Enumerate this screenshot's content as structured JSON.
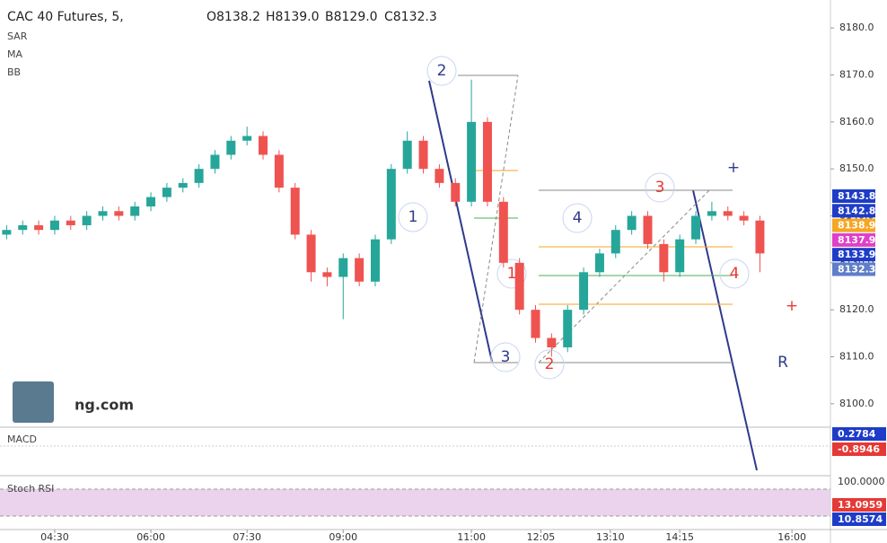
{
  "chart_data": {
    "type": "candlestick",
    "title": "CAC 40 Futures, 5,",
    "ohlc_header": [
      "O8138.2",
      "H8139.0",
      "B8129.0",
      "C8132.3"
    ],
    "indicators": [
      "SAR",
      "MA",
      "BB"
    ],
    "up_color": "#26a69a",
    "down_color": "#ef5350",
    "x": [
      225,
      240,
      255,
      270,
      285,
      300,
      315,
      330,
      345,
      360,
      375,
      390,
      405,
      420,
      435,
      450,
      465,
      480,
      495,
      510,
      525,
      540,
      555,
      570,
      585,
      600,
      615,
      630,
      645,
      660,
      675,
      690,
      705,
      720,
      735,
      750,
      765,
      780,
      795,
      810,
      825,
      840,
      855,
      870,
      885,
      900,
      915,
      930
    ],
    "open": [
      8136,
      8137,
      8138,
      8137,
      8139,
      8138,
      8140,
      8141,
      8140,
      8142,
      8144,
      8146,
      8147,
      8150,
      8153,
      8156,
      8157,
      8153,
      8146,
      8136,
      8128,
      8127,
      8131,
      8126,
      8135,
      8150,
      8156,
      8150,
      8147,
      8143,
      8160,
      8143,
      8130,
      8120,
      8114,
      8112,
      8120,
      8128,
      8132,
      8137,
      8140,
      8134,
      8128,
      8135,
      8140,
      8141,
      8140,
      8139
    ],
    "high": [
      8138,
      8139,
      8139,
      8140,
      8140,
      8141,
      8142,
      8142,
      8143,
      8145,
      8147,
      8148,
      8151,
      8154,
      8157,
      8159,
      8158,
      8154,
      8147,
      8137,
      8129,
      8132,
      8132,
      8136,
      8151,
      8158,
      8157,
      8151,
      8148,
      8169,
      8161,
      8144,
      8131,
      8121,
      8115,
      8121,
      8129,
      8133,
      8138,
      8141,
      8141,
      8135,
      8136,
      8141,
      8143,
      8142,
      8141,
      8140
    ],
    "low": [
      8135,
      8136,
      8136,
      8136,
      8137,
      8137,
      8139,
      8139,
      8139,
      8141,
      8143,
      8145,
      8146,
      8149,
      8152,
      8155,
      8152,
      8145,
      8135,
      8126,
      8125,
      8118,
      8125,
      8125,
      8134,
      8149,
      8149,
      8146,
      8142,
      8142,
      8142,
      8129,
      8119,
      8113,
      8110,
      8111,
      8119,
      8127,
      8131,
      8136,
      8133,
      8126,
      8127,
      8134,
      8139,
      8139,
      8138,
      8128
    ],
    "close": [
      8137,
      8138,
      8137,
      8139,
      8138,
      8140,
      8141,
      8140,
      8142,
      8144,
      8146,
      8147,
      8150,
      8153,
      8156,
      8157,
      8153,
      8146,
      8136,
      8128,
      8127,
      8131,
      8126,
      8135,
      8150,
      8156,
      8150,
      8147,
      8143,
      8160,
      8143,
      8130,
      8120,
      8114,
      8112,
      8120,
      8128,
      8132,
      8137,
      8140,
      8134,
      8128,
      8135,
      8140,
      8141,
      8140,
      8139,
      8132
    ],
    "xlim": [
      223,
      996
    ],
    "xticks": [
      {
        "value": 270,
        "label": "04:30"
      },
      {
        "value": 360,
        "label": "06:00"
      },
      {
        "value": 450,
        "label": "07:30"
      },
      {
        "value": 540,
        "label": "09:00"
      },
      {
        "value": 660,
        "label": "11:00"
      },
      {
        "value": 725,
        "label": "12:05"
      },
      {
        "value": 790,
        "label": "13:10"
      },
      {
        "value": 855,
        "label": "14:15"
      },
      {
        "value": 960,
        "label": "16:00"
      }
    ],
    "ylim": [
      8095,
      8185
    ],
    "yticks": [
      {
        "value": 8100,
        "label": "8100.0"
      },
      {
        "value": 8110,
        "label": "8110.0"
      },
      {
        "value": 8120,
        "label": "8120.0"
      },
      {
        "value": 8130,
        "label": "8130.0"
      },
      {
        "value": 8140,
        "label": "8140.0"
      },
      {
        "value": 8150,
        "label": "8150.0"
      },
      {
        "value": 8160,
        "label": "8160.0"
      },
      {
        "value": 8170,
        "label": "8170.0"
      },
      {
        "value": 8180,
        "label": "8180.0"
      }
    ],
    "price_labels": [
      {
        "value": 8143.8,
        "color": "#1e3cc8"
      },
      {
        "value": 8142.8,
        "color": "#1e3cc8"
      },
      {
        "value": 8138.9,
        "color": "#f5a623"
      },
      {
        "value": 8137.9,
        "color": "#e040c8"
      },
      {
        "value": 8133.9,
        "color": "#1e3cc8"
      },
      {
        "value": 8132.3,
        "color": "#5f7ec8"
      }
    ],
    "annotations": [
      "1",
      "2",
      "3",
      "4",
      "1",
      "2",
      "3",
      "4",
      "R",
      "+",
      "+"
    ],
    "macd": {
      "name": "MACD",
      "labels": [
        "0.2784",
        "-0.8946"
      ]
    },
    "stoch": {
      "name": "Stoch RSI",
      "labels": [
        "100.0000",
        "13.0959",
        "10.8574"
      ]
    },
    "logo": "ng.com"
  }
}
